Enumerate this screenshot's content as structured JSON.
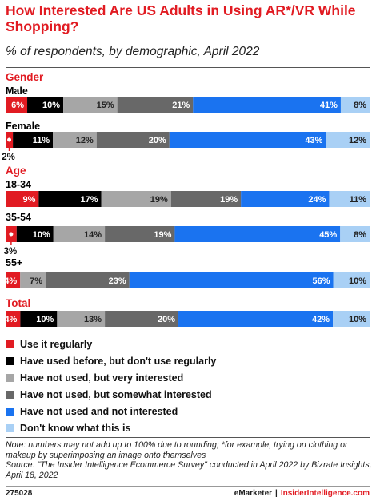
{
  "header": {
    "title": "How Interested Are US Adults in Using AR*/VR While Shopping?",
    "subtitle": "% of respondents, by demographic, April 2022"
  },
  "chart_data": {
    "type": "bar",
    "orientation": "horizontal",
    "stacked": true,
    "title": "How Interested Are US Adults in Using AR*/VR While Shopping?",
    "subtitle": "% of respondents, by demographic, April 2022",
    "series": [
      {
        "name": "Use it regularly",
        "color": "#e11b22"
      },
      {
        "name": "Have used before, but don't use regularly",
        "color": "#000000"
      },
      {
        "name": "Have not used, but very interested",
        "color": "#a6a6a6"
      },
      {
        "name": "Have not used, but somewhat interested",
        "color": "#686868"
      },
      {
        "name": "Have not used and not interested",
        "color": "#1a73f0"
      },
      {
        "name": "Don't know what this is",
        "color": "#a9d0f5"
      }
    ],
    "groups": [
      {
        "heading": "Gender",
        "rows": [
          {
            "label": "Male",
            "values": [
              6,
              10,
              15,
              21,
              41,
              8
            ]
          },
          {
            "label": "Female",
            "values": [
              2,
              11,
              12,
              20,
              43,
              12
            ]
          }
        ]
      },
      {
        "heading": "Age",
        "rows": [
          {
            "label": "18-34",
            "values": [
              9,
              17,
              19,
              19,
              24,
              11
            ]
          },
          {
            "label": "35-54",
            "values": [
              3,
              10,
              14,
              19,
              45,
              8
            ]
          },
          {
            "label": "55+",
            "values": [
              4,
              7,
              23,
              56,
              10
            ],
            "series_index": [
              0,
              2,
              3,
              4,
              5
            ]
          }
        ]
      },
      {
        "heading": "Total",
        "rows": [
          {
            "label": "",
            "values": [
              4,
              10,
              13,
              20,
              42,
              10
            ]
          }
        ]
      }
    ],
    "value_format": "{v}%"
  },
  "legend": [
    "Use it regularly",
    "Have used before, but don't use regularly",
    "Have not used, but very interested",
    "Have not used, but somewhat interested",
    "Have not used and not interested",
    "Don't know what this is"
  ],
  "note": "Note: numbers may not add up to 100% due to rounding; *for example, trying on clothing or makeup by superimposing an image onto themselves",
  "source": "Source: \"The Insider Intelligence Ecommerce Survey\" conducted in April 2022 by Bizrate Insights, April 18, 2022",
  "footer": {
    "chart_id": "275028",
    "brand_left": "eMarketer",
    "separator": "|",
    "brand_right": "InsiderIntelligence.com"
  }
}
